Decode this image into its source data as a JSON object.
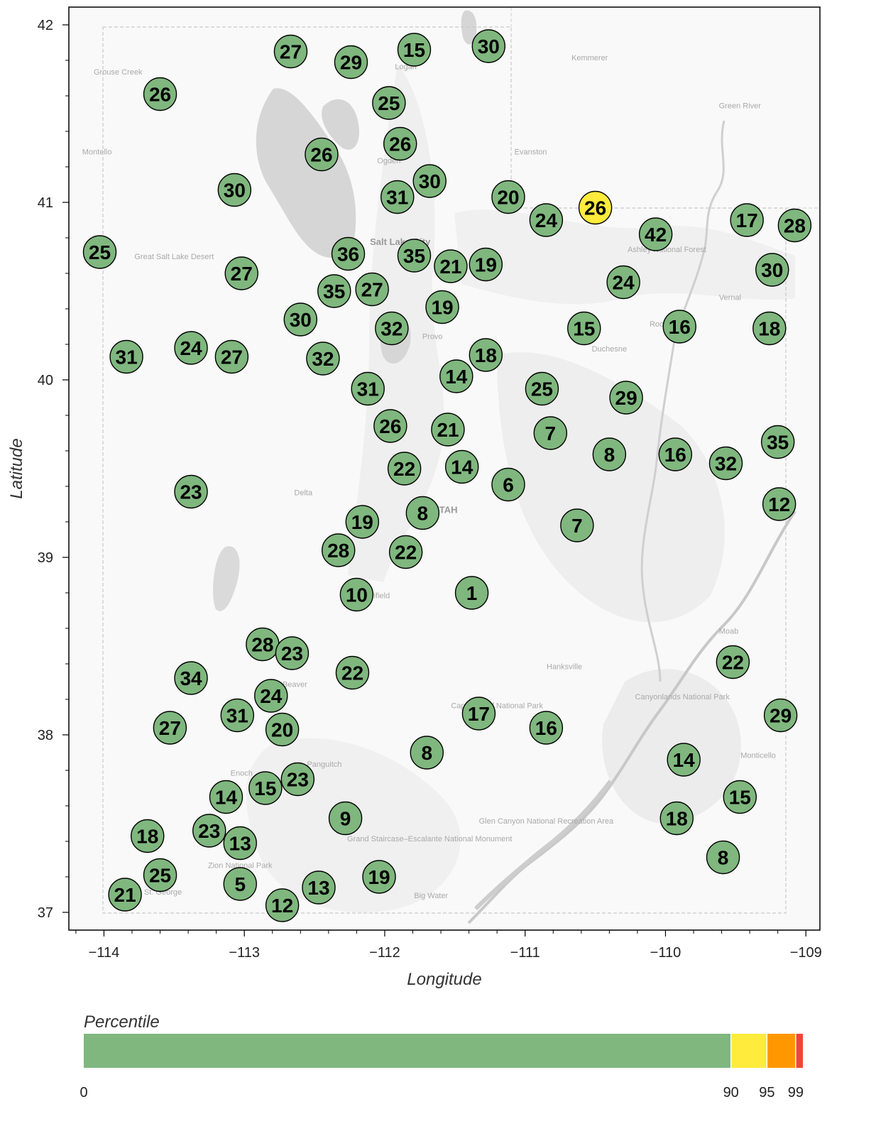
{
  "map": {
    "xlabel": "Longitude",
    "ylabel": "Latitude",
    "xlim": [
      -114.25,
      -108.9
    ],
    "ylim": [
      36.9,
      42.1
    ],
    "x_ticks": [
      -114,
      -113,
      -112,
      -111,
      -110,
      -109
    ],
    "x_tick_labels": [
      "−114",
      "−113",
      "−112",
      "−111",
      "−110",
      "−109"
    ],
    "y_ticks": [
      37,
      38,
      39,
      40,
      41,
      42
    ],
    "y_tick_labels": [
      "37",
      "38",
      "39",
      "40",
      "41",
      "42"
    ],
    "basemap_labels": [
      {
        "text": "Grouse Creek",
        "lon": -113.9,
        "lat": 41.72
      },
      {
        "text": "Montello",
        "lon": -114.05,
        "lat": 41.27
      },
      {
        "text": "Logan",
        "lon": -111.85,
        "lat": 41.75
      },
      {
        "text": "Kemmerer",
        "lon": -110.54,
        "lat": 41.8
      },
      {
        "text": "Green River",
        "lon": -109.47,
        "lat": 41.53
      },
      {
        "text": "Ogden",
        "lon": -111.97,
        "lat": 41.22
      },
      {
        "text": "Evanston",
        "lon": -110.96,
        "lat": 41.27
      },
      {
        "text": "Great Salt Lake Desert",
        "lon": -113.5,
        "lat": 40.68
      },
      {
        "text": "Salt Lake City",
        "lon": -111.89,
        "lat": 40.76
      },
      {
        "text": "Ashley National Forest",
        "lon": -109.99,
        "lat": 40.72
      },
      {
        "text": "Vernal",
        "lon": -109.54,
        "lat": 40.45
      },
      {
        "text": "Roosevelt",
        "lon": -109.99,
        "lat": 40.3
      },
      {
        "text": "Duchesne",
        "lon": -110.4,
        "lat": 40.16
      },
      {
        "text": "Provo",
        "lon": -111.66,
        "lat": 40.23
      },
      {
        "text": "Delta",
        "lon": -112.58,
        "lat": 39.35
      },
      {
        "text": "UTAH",
        "lon": -111.57,
        "lat": 39.25
      },
      {
        "text": "Richfield",
        "lon": -112.07,
        "lat": 38.77
      },
      {
        "text": "Moab",
        "lon": -109.55,
        "lat": 38.57
      },
      {
        "text": "Hanksville",
        "lon": -110.72,
        "lat": 38.37
      },
      {
        "text": "Beaver",
        "lon": -112.64,
        "lat": 38.27
      },
      {
        "text": "Capitol Reef National Park",
        "lon": -111.2,
        "lat": 38.15
      },
      {
        "text": "Canyonlands National Park",
        "lon": -109.88,
        "lat": 38.2
      },
      {
        "text": "Monticello",
        "lon": -109.34,
        "lat": 37.87
      },
      {
        "text": "Enoch",
        "lon": -113.02,
        "lat": 37.77
      },
      {
        "text": "Panguitch",
        "lon": -112.43,
        "lat": 37.82
      },
      {
        "text": "Glen Canyon National Recreation Area",
        "lon": -110.85,
        "lat": 37.5
      },
      {
        "text": "Grand Staircase–Escalante National Monument",
        "lon": -111.68,
        "lat": 37.4
      },
      {
        "text": "Zion National Park",
        "lon": -113.03,
        "lat": 37.25
      },
      {
        "text": "St. George",
        "lon": -113.58,
        "lat": 37.1
      },
      {
        "text": "Big Water",
        "lon": -111.67,
        "lat": 37.08
      }
    ]
  },
  "stations": [
    {
      "lon": -112.67,
      "lat": 41.85,
      "value": 27
    },
    {
      "lon": -112.24,
      "lat": 41.79,
      "value": 29
    },
    {
      "lon": -111.79,
      "lat": 41.86,
      "value": 15
    },
    {
      "lon": -111.26,
      "lat": 41.88,
      "value": 30
    },
    {
      "lon": -113.6,
      "lat": 41.61,
      "value": 26
    },
    {
      "lon": -111.97,
      "lat": 41.56,
      "value": 25
    },
    {
      "lon": -111.89,
      "lat": 41.33,
      "value": 26
    },
    {
      "lon": -112.45,
      "lat": 41.27,
      "value": 26
    },
    {
      "lon": -111.68,
      "lat": 41.12,
      "value": 30
    },
    {
      "lon": -113.07,
      "lat": 41.07,
      "value": 30
    },
    {
      "lon": -111.91,
      "lat": 41.03,
      "value": 31
    },
    {
      "lon": -111.12,
      "lat": 41.03,
      "value": 20
    },
    {
      "lon": -110.5,
      "lat": 40.97,
      "value": 26,
      "highlight": true
    },
    {
      "lon": -110.85,
      "lat": 40.9,
      "value": 24
    },
    {
      "lon": -109.42,
      "lat": 40.9,
      "value": 17
    },
    {
      "lon": -109.08,
      "lat": 40.87,
      "value": 28
    },
    {
      "lon": -110.07,
      "lat": 40.82,
      "value": 42
    },
    {
      "lon": -114.03,
      "lat": 40.72,
      "value": 25
    },
    {
      "lon": -112.26,
      "lat": 40.71,
      "value": 36
    },
    {
      "lon": -111.79,
      "lat": 40.7,
      "value": 35
    },
    {
      "lon": -111.53,
      "lat": 40.64,
      "value": 21
    },
    {
      "lon": -111.28,
      "lat": 40.65,
      "value": 19
    },
    {
      "lon": -109.24,
      "lat": 40.62,
      "value": 30
    },
    {
      "lon": -113.02,
      "lat": 40.6,
      "value": 27
    },
    {
      "lon": -110.3,
      "lat": 40.55,
      "value": 24
    },
    {
      "lon": -112.36,
      "lat": 40.5,
      "value": 35
    },
    {
      "lon": -112.09,
      "lat": 40.51,
      "value": 27
    },
    {
      "lon": -111.59,
      "lat": 40.41,
      "value": 19
    },
    {
      "lon": -112.6,
      "lat": 40.34,
      "value": 30
    },
    {
      "lon": -110.58,
      "lat": 40.29,
      "value": 15
    },
    {
      "lon": -109.9,
      "lat": 40.3,
      "value": 16
    },
    {
      "lon": -109.26,
      "lat": 40.29,
      "value": 18
    },
    {
      "lon": -111.95,
      "lat": 40.29,
      "value": 32
    },
    {
      "lon": -113.38,
      "lat": 40.18,
      "value": 24
    },
    {
      "lon": -113.84,
      "lat": 40.13,
      "value": 31
    },
    {
      "lon": -113.09,
      "lat": 40.13,
      "value": 27
    },
    {
      "lon": -112.44,
      "lat": 40.12,
      "value": 32
    },
    {
      "lon": -111.28,
      "lat": 40.14,
      "value": 18
    },
    {
      "lon": -111.49,
      "lat": 40.02,
      "value": 14
    },
    {
      "lon": -112.12,
      "lat": 39.95,
      "value": 31
    },
    {
      "lon": -110.88,
      "lat": 39.95,
      "value": 25
    },
    {
      "lon": -110.28,
      "lat": 39.9,
      "value": 29
    },
    {
      "lon": -111.96,
      "lat": 39.74,
      "value": 26
    },
    {
      "lon": -111.55,
      "lat": 39.72,
      "value": 21
    },
    {
      "lon": -110.82,
      "lat": 39.7,
      "value": 7
    },
    {
      "lon": -109.2,
      "lat": 39.65,
      "value": 35
    },
    {
      "lon": -110.4,
      "lat": 39.58,
      "value": 8
    },
    {
      "lon": -109.93,
      "lat": 39.58,
      "value": 16
    },
    {
      "lon": -109.57,
      "lat": 39.53,
      "value": 32
    },
    {
      "lon": -111.86,
      "lat": 39.5,
      "value": 22
    },
    {
      "lon": -111.45,
      "lat": 39.51,
      "value": 14
    },
    {
      "lon": -111.12,
      "lat": 39.41,
      "value": 6
    },
    {
      "lon": -113.38,
      "lat": 39.37,
      "value": 23
    },
    {
      "lon": -109.19,
      "lat": 39.3,
      "value": 12
    },
    {
      "lon": -111.73,
      "lat": 39.25,
      "value": 8
    },
    {
      "lon": -112.16,
      "lat": 39.2,
      "value": 19
    },
    {
      "lon": -110.63,
      "lat": 39.18,
      "value": 7
    },
    {
      "lon": -112.33,
      "lat": 39.04,
      "value": 28
    },
    {
      "lon": -111.85,
      "lat": 39.03,
      "value": 22
    },
    {
      "lon": -112.2,
      "lat": 38.79,
      "value": 10
    },
    {
      "lon": -111.38,
      "lat": 38.8,
      "value": 1
    },
    {
      "lon": -112.87,
      "lat": 38.51,
      "value": 28
    },
    {
      "lon": -112.66,
      "lat": 38.46,
      "value": 23
    },
    {
      "lon": -109.52,
      "lat": 38.41,
      "value": 22
    },
    {
      "lon": -112.23,
      "lat": 38.35,
      "value": 22
    },
    {
      "lon": -113.38,
      "lat": 38.32,
      "value": 34
    },
    {
      "lon": -112.81,
      "lat": 38.22,
      "value": 24
    },
    {
      "lon": -111.33,
      "lat": 38.12,
      "value": 17
    },
    {
      "lon": -109.18,
      "lat": 38.11,
      "value": 29
    },
    {
      "lon": -113.05,
      "lat": 38.11,
      "value": 31
    },
    {
      "lon": -113.53,
      "lat": 38.04,
      "value": 27
    },
    {
      "lon": -112.73,
      "lat": 38.03,
      "value": 20
    },
    {
      "lon": -110.85,
      "lat": 38.04,
      "value": 16
    },
    {
      "lon": -111.7,
      "lat": 37.9,
      "value": 8
    },
    {
      "lon": -109.87,
      "lat": 37.86,
      "value": 14
    },
    {
      "lon": -112.62,
      "lat": 37.75,
      "value": 23
    },
    {
      "lon": -112.85,
      "lat": 37.7,
      "value": 15
    },
    {
      "lon": -113.13,
      "lat": 37.65,
      "value": 14
    },
    {
      "lon": -109.47,
      "lat": 37.65,
      "value": 15
    },
    {
      "lon": -112.28,
      "lat": 37.53,
      "value": 9
    },
    {
      "lon": -109.92,
      "lat": 37.53,
      "value": 18
    },
    {
      "lon": -113.25,
      "lat": 37.46,
      "value": 23
    },
    {
      "lon": -113.69,
      "lat": 37.43,
      "value": 18
    },
    {
      "lon": -113.03,
      "lat": 37.39,
      "value": 13
    },
    {
      "lon": -109.59,
      "lat": 37.31,
      "value": 8
    },
    {
      "lon": -113.6,
      "lat": 37.21,
      "value": 25
    },
    {
      "lon": -112.04,
      "lat": 37.2,
      "value": 19
    },
    {
      "lon": -113.03,
      "lat": 37.16,
      "value": 5
    },
    {
      "lon": -112.47,
      "lat": 37.14,
      "value": 13
    },
    {
      "lon": -113.85,
      "lat": 37.1,
      "value": 21
    },
    {
      "lon": -112.73,
      "lat": 37.04,
      "value": 12
    }
  ],
  "colorbar": {
    "title": "Percentile",
    "segments": [
      {
        "from": 0,
        "to": 90,
        "color": "#7fb77e"
      },
      {
        "from": 90,
        "to": 95,
        "color": "#ffeb3b"
      },
      {
        "from": 95,
        "to": 99,
        "color": "#ff9800"
      },
      {
        "from": 99,
        "to": 100,
        "color": "#f44336"
      }
    ],
    "ticks": [
      {
        "value": 0,
        "label": "0"
      },
      {
        "value": 90,
        "label": "90"
      },
      {
        "value": 95,
        "label": "95"
      },
      {
        "value": 99,
        "label": "99"
      }
    ]
  },
  "colors": {
    "normal_fill": "#7fb77e",
    "highlight_fill": "#ffeb3b",
    "marker_stroke": "#000000",
    "map_background": "#f9f9f9",
    "water": "#d6d6d6",
    "relief": "#efefef"
  }
}
